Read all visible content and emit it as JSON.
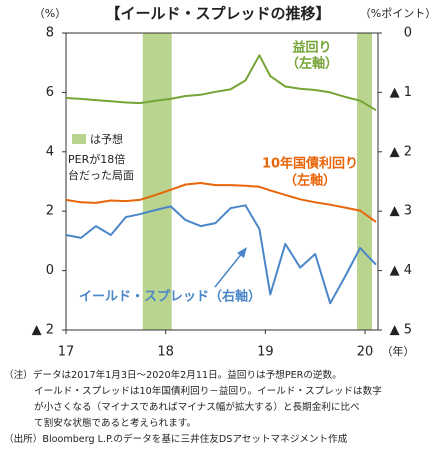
{
  "chart_data": {
    "type": "line",
    "title": "【イールド・スプレッドの推移】",
    "y_unit": "（%）",
    "y2_unit": "（%ポイント）",
    "x_unit": "（年）",
    "x": [
      17.0,
      17.15,
      17.3,
      17.45,
      17.6,
      17.74,
      17.9,
      18.05,
      18.2,
      18.35,
      18.5,
      18.65,
      18.8,
      18.94,
      19.05,
      19.2,
      19.35,
      19.5,
      19.65,
      19.8,
      19.95,
      20.11
    ],
    "xlim": [
      17,
      20.13
    ],
    "xticks": [
      17,
      18,
      19,
      20
    ],
    "ylim": [
      -2,
      8
    ],
    "yticks": [
      {
        "value": -2,
        "label": "▲ 2"
      },
      0,
      2,
      4,
      6,
      8
    ],
    "y2lim": [
      5,
      0
    ],
    "y2ticks": [
      0,
      {
        "value": 1,
        "label": "▲ 1"
      },
      {
        "value": 2,
        "label": "▲ 2"
      },
      {
        "value": 3,
        "label": "▲ 3"
      },
      {
        "value": 4,
        "label": "▲ 4"
      },
      {
        "value": 5,
        "label": "▲ 5"
      }
    ],
    "series": [
      {
        "name": "益回り",
        "note": "（左軸）",
        "color": "#76a436",
        "values": [
          5.81,
          5.78,
          5.74,
          5.7,
          5.66,
          5.64,
          5.72,
          5.78,
          5.88,
          5.92,
          6.02,
          6.1,
          6.4,
          7.25,
          6.55,
          6.2,
          6.12,
          6.08,
          6.0,
          5.85,
          5.72,
          5.4
        ]
      },
      {
        "name": "10年国債利回り",
        "note": "（左軸）",
        "color": "#e8650a",
        "values": [
          2.38,
          2.3,
          2.28,
          2.36,
          2.34,
          2.38,
          2.55,
          2.72,
          2.9,
          2.95,
          2.88,
          2.88,
          2.86,
          2.82,
          2.7,
          2.55,
          2.4,
          2.3,
          2.22,
          2.12,
          2.02,
          1.64
        ]
      },
      {
        "name": "イールド・スプレッド（右軸）",
        "color": "#4a86c8",
        "axis": "y2",
        "values": [
          3.4,
          3.45,
          3.25,
          3.4,
          3.1,
          3.05,
          2.98,
          2.92,
          3.15,
          3.25,
          3.2,
          2.95,
          2.9,
          3.3,
          4.4,
          3.55,
          3.95,
          3.72,
          4.55,
          4.1,
          3.62,
          3.9
        ]
      }
    ],
    "shaded": {
      "label": "は予想",
      "color": "#b8d48e",
      "ranges": [
        [
          17.77,
          18.06
        ],
        [
          19.92,
          20.07
        ]
      ]
    },
    "annotation": [
      "PERが18倍",
      "台だった局面"
    ]
  },
  "notes": [
    "（注）データは2017年1月3日～2020年2月11日。益回りは予想PERの逆数。",
    "イールド・スプレッドは10年国債利回り－益回り。イールド・スプレッドは数字",
    "が小さくなる（マイナスであればマイナス幅が拡大する）と長期金利に比べ",
    "て割安な状態であると考えられます。",
    "（出所）Bloomberg L.P.のデータを基に三井住友DSアセットマネジメント作成"
  ]
}
